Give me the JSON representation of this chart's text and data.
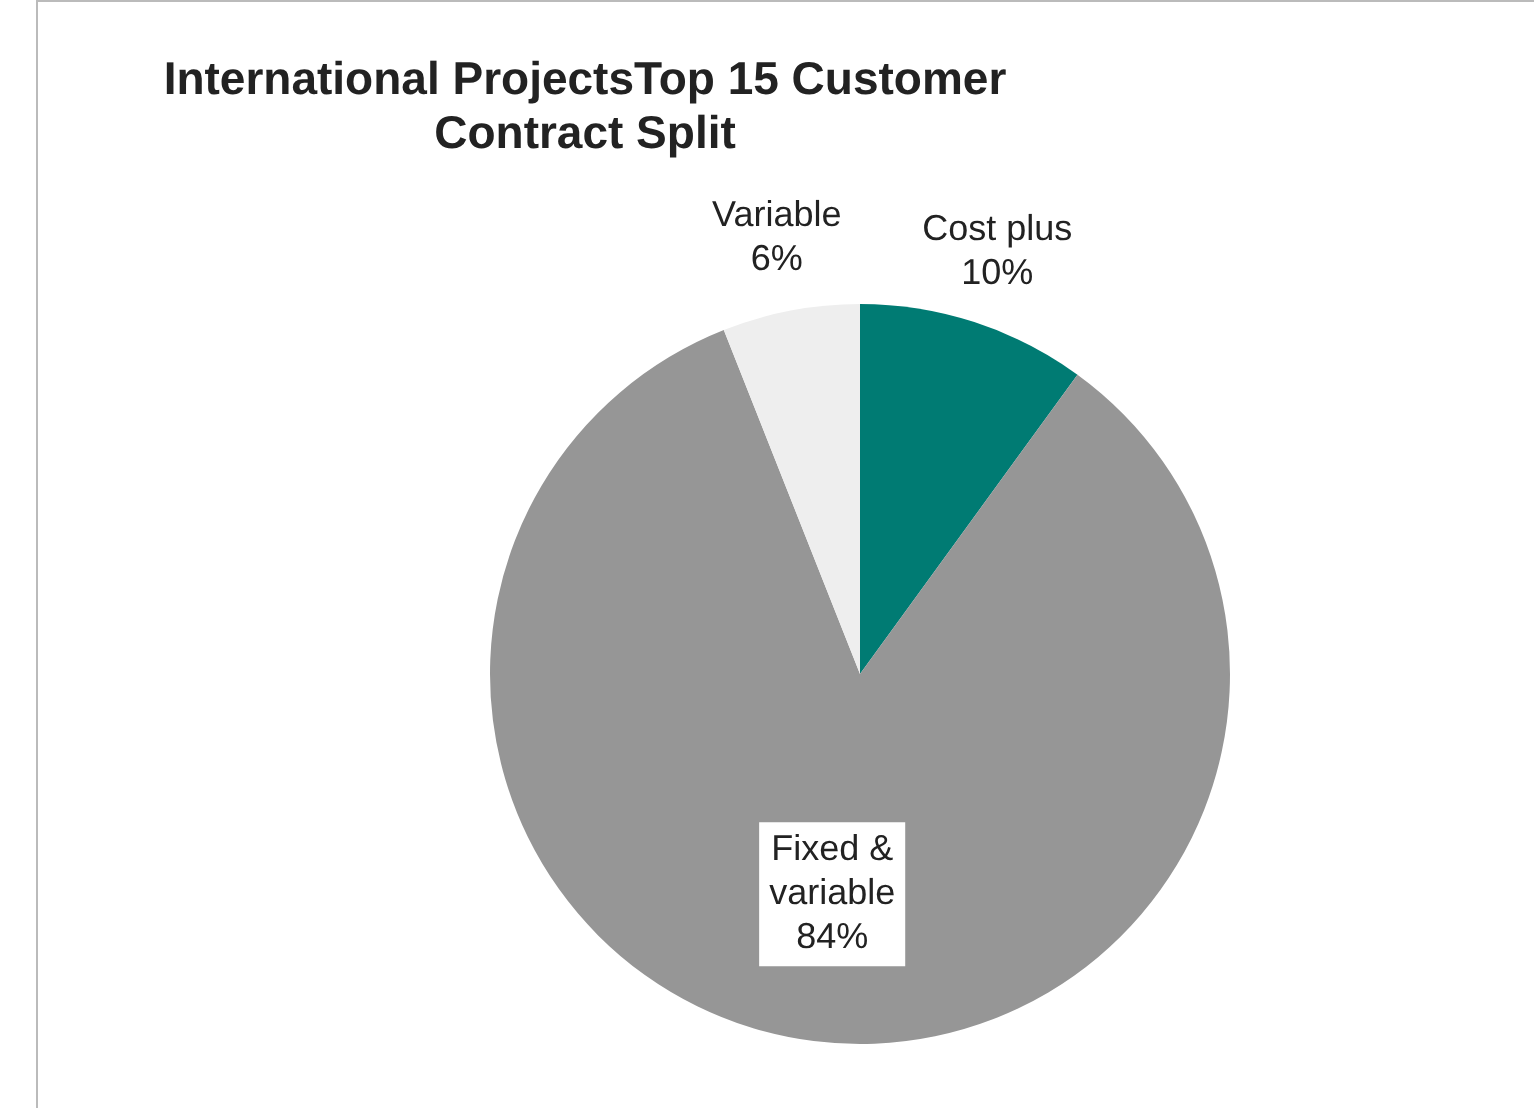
{
  "chart_data": {
    "type": "pie",
    "title": "International ProjectsTop 15 Customer Contract Split",
    "categories": [
      "Cost plus",
      "Fixed & variable",
      "Variable"
    ],
    "values": [
      10,
      84,
      6
    ],
    "colors": [
      "#007b73",
      "#969696",
      "#eeeeee"
    ],
    "value_labels": [
      "10%",
      "84%",
      "6%"
    ],
    "legend": false
  }
}
